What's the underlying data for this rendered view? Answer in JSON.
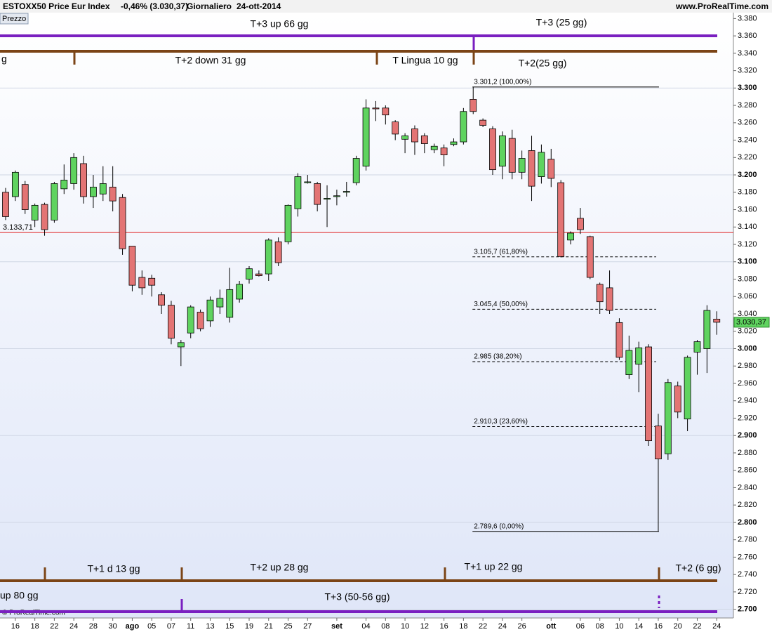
{
  "chart_data": {
    "type": "candlestick",
    "title": "ESTOXX50 Price Eur Index",
    "change": "-0,46% (3.030,37)",
    "period": "Giornaliero",
    "date": "24-ott-2014",
    "source": "www.ProRealTime.com",
    "panel_label": "Prezzo",
    "copyright": "© ProRealTime.com",
    "categories": [
      null,
      "16",
      null,
      "18",
      null,
      "22",
      null,
      "24",
      null,
      "28",
      null,
      "30",
      null,
      "ago",
      null,
      "05",
      null,
      "07",
      null,
      "11",
      null,
      "13",
      null,
      "15",
      null,
      "19",
      null,
      "21",
      null,
      "25",
      null,
      "27",
      null,
      null,
      "set",
      null,
      null,
      "04",
      null,
      "08",
      null,
      "10",
      null,
      "12",
      null,
      "16",
      null,
      "18",
      null,
      "22",
      null,
      "24",
      null,
      "26",
      null,
      null,
      "ott",
      null,
      null,
      "06",
      null,
      "08",
      null,
      "10",
      null,
      "14",
      null,
      "16",
      null,
      "20",
      null,
      "22",
      null,
      "24"
    ],
    "open": [
      3180,
      3175,
      3189,
      3148,
      3166,
      3148,
      3184,
      3190,
      3213,
      3175,
      3178,
      3186,
      3174,
      3118,
      3082,
      3081,
      3062,
      3050,
      3002,
      3018,
      3042,
      3032,
      3048,
      3036,
      3057,
      3080,
      3086,
      3086,
      3123,
      3123,
      3161,
      3191,
      3190,
      3172,
      3175,
      3180,
      3191,
      3210,
      3277,
      3277,
      3261,
      3241,
      3253,
      3245,
      3229,
      3231,
      3235,
      3238,
      3287,
      3263,
      3253,
      3210,
      3242,
      3203,
      3228,
      3198,
      3218,
      3191,
      3125,
      3150,
      3129,
      3074,
      3070,
      3030,
      2970,
      2982,
      3002,
      2911,
      2879,
      2957,
      2919,
      2996,
      3000,
      3034
    ],
    "high": [
      3185,
      3205,
      3193,
      3167,
      3168,
      3192,
      3212,
      3225,
      3222,
      3200,
      3210,
      3210,
      3178,
      3118,
      3090,
      3085,
      3065,
      3055,
      3010,
      3050,
      3045,
      3060,
      3068,
      3093,
      3078,
      3095,
      3090,
      3127,
      3128,
      3166,
      3202,
      3200,
      3192,
      3188,
      3183,
      3192,
      3222,
      3287,
      3285,
      3280,
      3263,
      3248,
      3257,
      3248,
      3236,
      3235,
      3242,
      3277,
      3301.2,
      3265,
      3256,
      3250,
      3252,
      3228,
      3245,
      3235,
      3230,
      3194,
      3135,
      3162,
      3130,
      3076,
      3090,
      3035,
      3015,
      3008,
      3005,
      2925,
      2965,
      2962,
      2992,
      3010,
      3050,
      3043
    ],
    "low": [
      3148,
      3170,
      3155,
      3140,
      3130,
      3145,
      3178,
      3183,
      3167,
      3162,
      3170,
      3158,
      3108,
      3066,
      3062,
      3060,
      3040,
      3005,
      2980,
      3012,
      3020,
      3025,
      3040,
      3030,
      3053,
      3075,
      3083,
      3078,
      3095,
      3120,
      3152,
      3190,
      3158,
      3140,
      3165,
      3175,
      3188,
      3205,
      3262,
      3258,
      3240,
      3225,
      3223,
      3225,
      3225,
      3210,
      3233,
      3235,
      3270,
      3255,
      3200,
      3195,
      3195,
      3195,
      3170,
      3190,
      3186,
      3105,
      3120,
      3132,
      3080,
      3040,
      3040,
      2987,
      2965,
      2950,
      2888,
      2789.6,
      2872,
      2920,
      2905,
      2970,
      2972,
      3016
    ],
    "close": [
      3152,
      3203,
      3160,
      3165,
      3137,
      3190,
      3194,
      3220,
      3175,
      3186,
      3190,
      3170,
      3115,
      3073,
      3070,
      3073,
      3050,
      3012,
      3007,
      3048,
      3023,
      3056,
      3058,
      3068,
      3074,
      3092,
      3084,
      3125,
      3099,
      3165,
      3198,
      3192,
      3166,
      3173,
      3176,
      3181,
      3219,
      3277,
      3276,
      3269,
      3247,
      3245,
      3238,
      3236,
      3233,
      3223,
      3238,
      3273,
      3273,
      3257,
      3206,
      3245,
      3203,
      3219,
      3187,
      3226,
      3196,
      3106,
      3133,
      3137,
      3082,
      3054,
      3044,
      2990,
      2998,
      3001,
      2894,
      2873,
      2961,
      2927,
      2990,
      3008,
      3044,
      3030.37
    ],
    "up_color": "#5fd35f",
    "down_color": "#e37474",
    "ylim": [
      2690,
      3390
    ],
    "yticks": [
      {
        "value": 3380,
        "label": "3.380"
      },
      {
        "value": 3360,
        "label": "3.360"
      },
      {
        "value": 3340,
        "label": "3.340"
      },
      {
        "value": 3320,
        "label": "3.320"
      },
      {
        "value": 3300,
        "label": "3.300"
      },
      {
        "value": 3280,
        "label": "3.280"
      },
      {
        "value": 3260,
        "label": "3.260"
      },
      {
        "value": 3240,
        "label": "3.240"
      },
      {
        "value": 3220,
        "label": "3.220"
      },
      {
        "value": 3200,
        "label": "3.200"
      },
      {
        "value": 3180,
        "label": "3.180"
      },
      {
        "value": 3160,
        "label": "3.160"
      },
      {
        "value": 3140,
        "label": "3.140"
      },
      {
        "value": 3120,
        "label": "3.120"
      },
      {
        "value": 3100,
        "label": "3.100"
      },
      {
        "value": 3080,
        "label": "3.080"
      },
      {
        "value": 3060,
        "label": "3.060"
      },
      {
        "value": 3040,
        "label": "3.040"
      },
      {
        "value": 3020,
        "label": "3.020"
      },
      {
        "value": 3000,
        "label": "3.000"
      },
      {
        "value": 2980,
        "label": "2.980"
      },
      {
        "value": 2960,
        "label": "2.960"
      },
      {
        "value": 2940,
        "label": "2.940"
      },
      {
        "value": 2920,
        "label": "2.920"
      },
      {
        "value": 2900,
        "label": "2.900"
      },
      {
        "value": 2880,
        "label": "2.880"
      },
      {
        "value": 2860,
        "label": "2.860"
      },
      {
        "value": 2840,
        "label": "2.840"
      },
      {
        "value": 2820,
        "label": "2.820"
      },
      {
        "value": 2800,
        "label": "2.800"
      },
      {
        "value": 2780,
        "label": "2.780"
      },
      {
        "value": 2760,
        "label": "2.760"
      },
      {
        "value": 2740,
        "label": "2.740"
      },
      {
        "value": 2720,
        "label": "2.720"
      },
      {
        "value": 2700,
        "label": "2.700"
      }
    ],
    "grid": true,
    "reference_line": {
      "value": 3133.71,
      "label": "3.133,71",
      "color": "#e02020"
    },
    "last_price": {
      "value": 3030.37,
      "label": "3.030,37",
      "color": "#5fd35f"
    },
    "fibonacci": [
      {
        "value": 3301.2,
        "label": "3.301,2 (100,00%)"
      },
      {
        "value": 3105.7,
        "label": "3.105,7 (61,80%)"
      },
      {
        "value": 3045.4,
        "label": "3.045,4 (50,00%)"
      },
      {
        "value": 2985,
        "label": "2.985 (38,20%)"
      },
      {
        "value": 2910.3,
        "label": "2.910,3 (23,60%)"
      },
      {
        "value": 2789.6,
        "label": "2.789,6 (0,00%)"
      }
    ],
    "annotations": [
      "T+3 up 66 gg",
      "T+3 (25 gg)",
      "g",
      "T+2 down 31 gg",
      "T Lingua 10 gg",
      "T+2(25 gg)",
      "T+1 d 13 gg",
      "T+2 up 28 gg",
      "T+1 up 22 gg",
      "T+2 (6 gg)",
      "up 80 gg",
      "T+3 (50-56 gg)"
    ]
  }
}
